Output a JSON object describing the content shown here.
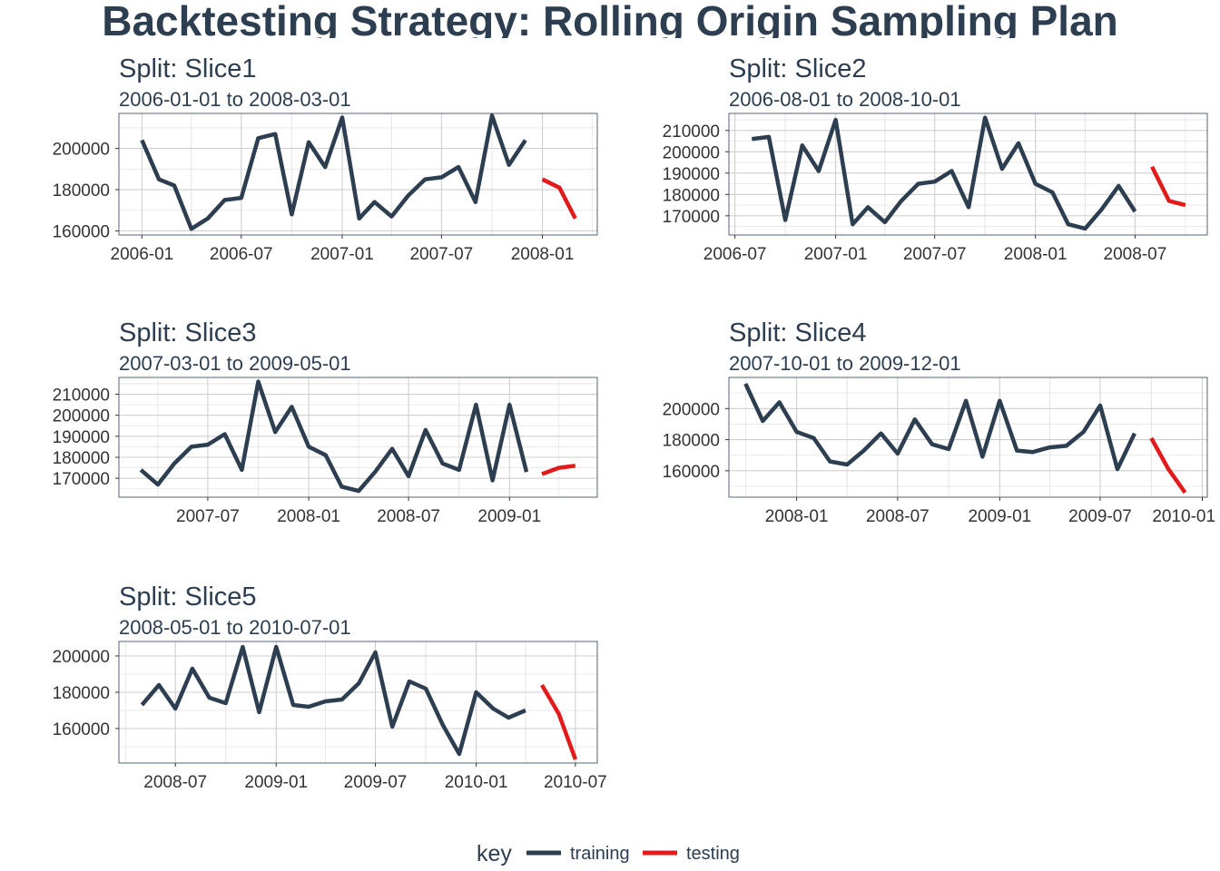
{
  "title": "Backtesting Strategy: Rolling Origin Sampling Plan",
  "colors": {
    "training": "#2c3e50",
    "testing": "#e31a1c"
  },
  "legend": {
    "title": "key",
    "items": [
      {
        "key": "training",
        "label": "training",
        "color": "#2c3e50"
      },
      {
        "key": "testing",
        "label": "testing",
        "color": "#e31a1c"
      }
    ]
  },
  "chart_data": [
    {
      "type": "line",
      "title": "Split: Slice1",
      "subtitle": "2006-01-01 to 2008-03-01",
      "xlim": [
        "2005-11-20",
        "2008-04-10"
      ],
      "ylim": [
        158000,
        217000
      ],
      "xticks": [
        "2006-01-01",
        "2006-07-01",
        "2007-01-01",
        "2007-07-01",
        "2008-01-01"
      ],
      "xtick_labels": [
        "2006-01",
        "2006-07",
        "2007-01",
        "2007-07",
        "2008-01"
      ],
      "yticks": [
        160000,
        180000,
        200000
      ],
      "yticks_minor": [
        170000,
        190000,
        210000
      ],
      "start": "2006-01-01",
      "series": [
        {
          "name": "training",
          "values": [
            204000,
            185000,
            182000,
            161000,
            166000,
            175000,
            176000,
            205000,
            207000,
            168000,
            203000,
            191000,
            215000,
            166000,
            174000,
            167000,
            177000,
            185000,
            186000,
            191000,
            174000,
            216000,
            192000,
            204000
          ]
        },
        {
          "name": "testing",
          "values": [
            185000,
            181000,
            166000
          ]
        }
      ]
    },
    {
      "type": "line",
      "title": "Split: Slice2",
      "subtitle": "2006-08-01 to 2008-10-01",
      "xlim": [
        "2006-06-20",
        "2008-11-10"
      ],
      "ylim": [
        161000,
        218000
      ],
      "xticks": [
        "2006-07-01",
        "2007-01-01",
        "2007-07-01",
        "2008-01-01",
        "2008-07-01"
      ],
      "xtick_labels": [
        "2006-07",
        "2007-01",
        "2007-07",
        "2008-01",
        "2008-07"
      ],
      "yticks": [
        170000,
        180000,
        190000,
        200000,
        210000
      ],
      "yticks_minor": [
        165000,
        175000,
        185000,
        195000,
        205000,
        215000
      ],
      "start": "2006-08-01",
      "series": [
        {
          "name": "training",
          "values": [
            206000,
            207000,
            168000,
            203000,
            191000,
            215000,
            166000,
            174000,
            167000,
            177000,
            185000,
            186000,
            191000,
            174000,
            216000,
            192000,
            204000,
            185000,
            181000,
            166000,
            164000,
            173000,
            184000,
            172000
          ]
        },
        {
          "name": "testing",
          "values": [
            193000,
            177000,
            175000
          ]
        }
      ]
    },
    {
      "type": "line",
      "title": "Split: Slice3",
      "subtitle": "2007-03-01 to 2009-05-01",
      "xlim": [
        "2007-01-20",
        "2009-06-10"
      ],
      "ylim": [
        161000,
        218000
      ],
      "xticks": [
        "2007-07-01",
        "2008-01-01",
        "2008-07-01",
        "2009-01-01"
      ],
      "xtick_labels": [
        "2007-07",
        "2008-01",
        "2008-07",
        "2009-01"
      ],
      "yticks": [
        170000,
        180000,
        190000,
        200000,
        210000
      ],
      "yticks_minor": [
        165000,
        175000,
        185000,
        195000,
        205000,
        215000
      ],
      "start": "2007-03-01",
      "series": [
        {
          "name": "training",
          "values": [
            174000,
            167000,
            177000,
            185000,
            186000,
            191000,
            174000,
            216000,
            192000,
            204000,
            185000,
            181000,
            166000,
            164000,
            173000,
            184000,
            171000,
            193000,
            177000,
            174000,
            205000,
            169000,
            205000,
            173000
          ]
        },
        {
          "name": "testing",
          "values": [
            172000,
            175000,
            176000
          ]
        }
      ]
    },
    {
      "type": "line",
      "title": "Split: Slice4",
      "subtitle": "2007-10-01 to 2009-12-01",
      "xlim": [
        "2007-09-01",
        "2010-01-10"
      ],
      "ylim": [
        143000,
        220000
      ],
      "xticks": [
        "2008-01-01",
        "2008-07-01",
        "2009-01-01",
        "2009-07-01",
        "2010-01-01"
      ],
      "xtick_labels": [
        "2008-01",
        "2008-07",
        "2009-01",
        "2009-07",
        "2010-01"
      ],
      "yticks": [
        160000,
        180000,
        200000
      ],
      "yticks_minor": [
        150000,
        170000,
        190000,
        210000
      ],
      "start": "2007-10-01",
      "series": [
        {
          "name": "training",
          "values": [
            216000,
            192000,
            204000,
            185000,
            181000,
            166000,
            164000,
            173000,
            184000,
            171000,
            193000,
            177000,
            174000,
            205000,
            169000,
            205000,
            173000,
            172000,
            175000,
            176000,
            185000,
            202000,
            161000,
            184000
          ]
        },
        {
          "name": "testing",
          "values": [
            181000,
            161000,
            146000
          ]
        }
      ]
    },
    {
      "type": "line",
      "title": "Split: Slice5",
      "subtitle": "2008-05-01 to 2010-07-01",
      "xlim": [
        "2008-03-20",
        "2010-08-10"
      ],
      "ylim": [
        141000,
        208000
      ],
      "xticks": [
        "2008-07-01",
        "2009-01-01",
        "2009-07-01",
        "2010-01-01",
        "2010-07-01"
      ],
      "xtick_labels": [
        "2008-07",
        "2009-01",
        "2009-07",
        "2010-01",
        "2010-07"
      ],
      "yticks": [
        160000,
        180000,
        200000
      ],
      "yticks_minor": [
        150000,
        170000,
        190000
      ],
      "start": "2008-05-01",
      "series": [
        {
          "name": "training",
          "values": [
            173000,
            184000,
            171000,
            193000,
            177000,
            174000,
            205000,
            169000,
            205000,
            173000,
            172000,
            175000,
            176000,
            185000,
            202000,
            161000,
            186000,
            182000,
            162000,
            146000,
            180000,
            171000,
            166000,
            170000
          ]
        },
        {
          "name": "testing",
          "values": [
            184000,
            168000,
            143000
          ]
        }
      ]
    }
  ]
}
